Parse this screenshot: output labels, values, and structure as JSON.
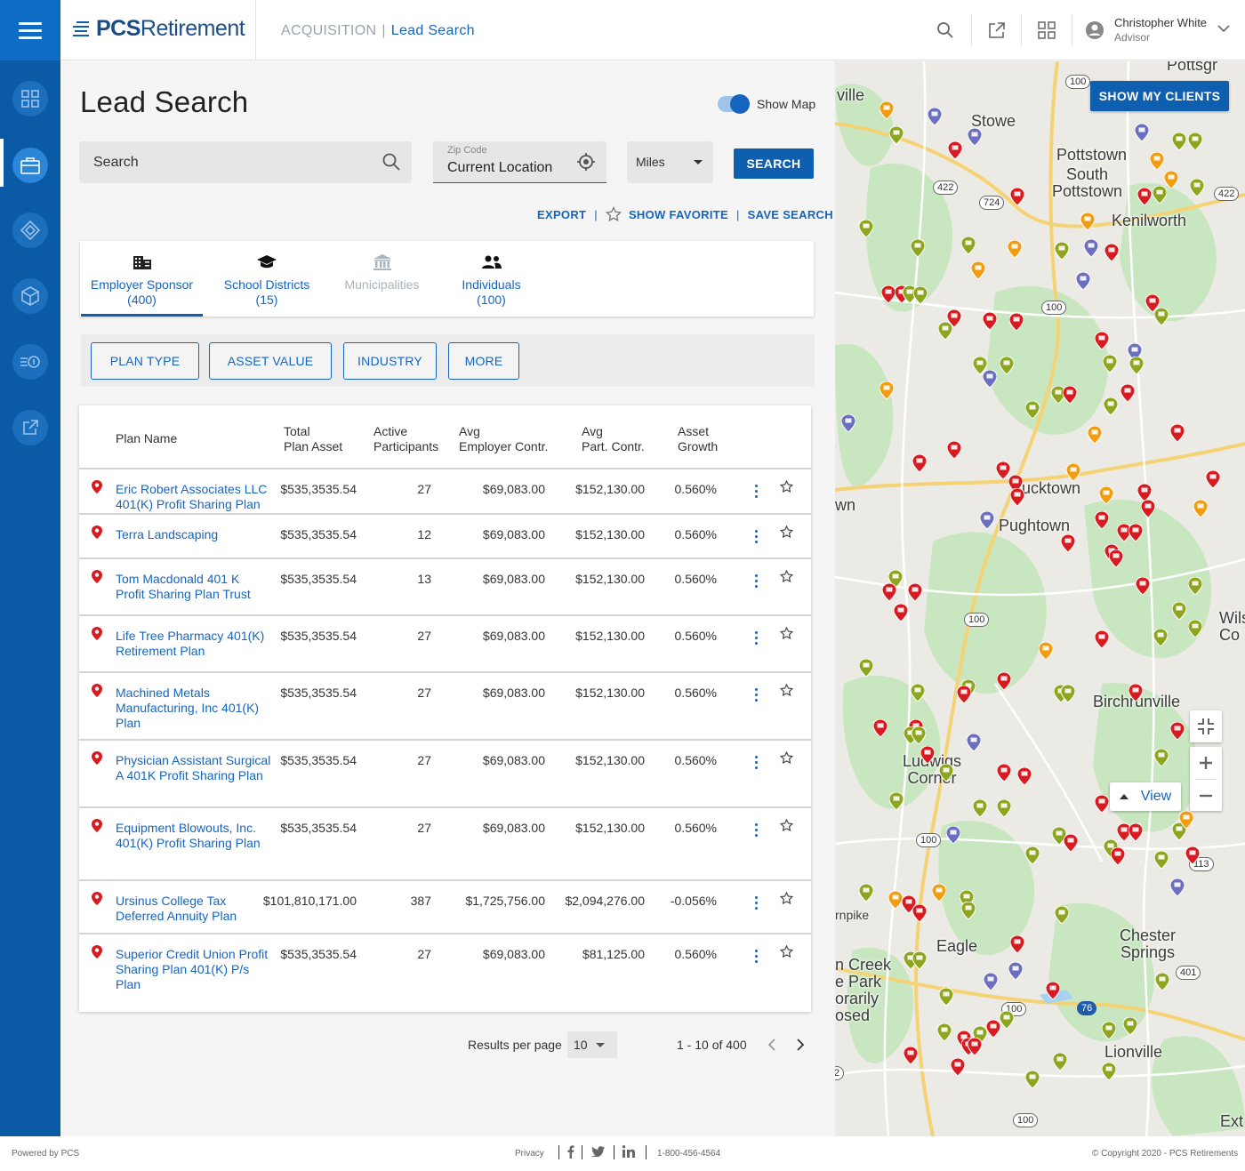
{
  "header": {
    "logo_brand": "PCS",
    "logo_suffix": "Retirement",
    "breadcrumb_section": "ACQUISITION",
    "breadcrumb_page": "Lead Search",
    "user_name": "Christopher White",
    "user_role": "Advisor"
  },
  "sidebar": {
    "items": [
      {
        "icon": "dashboard-icon"
      },
      {
        "icon": "briefcase-icon",
        "active": true
      },
      {
        "icon": "diamond-icon"
      },
      {
        "icon": "cube-icon"
      },
      {
        "icon": "money-transfer-icon"
      },
      {
        "icon": "external-link-icon"
      }
    ]
  },
  "page": {
    "title": "Lead Search",
    "show_map_label": "Show Map",
    "show_map_on": true
  },
  "search": {
    "placeholder": "Search",
    "zip_label": "Zip Code",
    "zip_value": "Current Location",
    "distance_unit": "Miles",
    "search_button": "SEARCH"
  },
  "actions": {
    "export": "EXPORT",
    "show_favorite": "SHOW FAVORITE",
    "save_search": "SAVE SEARCH"
  },
  "tabs": [
    {
      "label": "Employer Sponsor",
      "count": "(400)",
      "icon": "building-icon",
      "active": true
    },
    {
      "label": "School Districts",
      "count": "(15)",
      "icon": "graduation-cap-icon"
    },
    {
      "label": "Municipalities",
      "count": "",
      "icon": "bank-icon",
      "disabled": true
    },
    {
      "label": "Individuals",
      "count": "(100)",
      "icon": "people-icon"
    }
  ],
  "filters": [
    "PLAN TYPE",
    "ASSET VALUE",
    "INDUSTRY",
    "MORE"
  ],
  "table": {
    "columns": [
      "Plan Name",
      "Total\nPlan Asset",
      "Active\nParticipants",
      "Avg\nEmployer Contr.",
      "Avg\nPart. Contr.",
      "Asset\nGrowth"
    ],
    "rows": [
      {
        "name": "Eric Robert Associates LLC 401(K) Profit Sharing Plan",
        "asset": "$535,3535.54",
        "participants": "27",
        "employer": "$69,083.00",
        "part": "$152,130.00",
        "growth": "0.560%"
      },
      {
        "name": "Terra Landscaping",
        "asset": "$535,3535.54",
        "participants": "12",
        "employer": "$69,083.00",
        "part": "$152,130.00",
        "growth": "0.560%"
      },
      {
        "name": "Tom Macdonald 401 K Profit Sharing Plan Trust",
        "asset": "$535,3535.54",
        "participants": "13",
        "employer": "$69,083.00",
        "part": "$152,130.00",
        "growth": "0.560%"
      },
      {
        "name": "Life Tree Pharmacy 401(K) Retirement Plan",
        "asset": "$535,3535.54",
        "participants": "27",
        "employer": "$69,083.00",
        "part": "$152,130.00",
        "growth": "0.560%"
      },
      {
        "name": "Machined Metals Manufacturing, Inc 401(K) Plan",
        "asset": "$535,3535.54",
        "participants": "27",
        "employer": "$69,083.00",
        "part": "$152,130.00",
        "growth": "0.560%"
      },
      {
        "name": "Physician Assistant Surgical A 401K Profit Sharing Plan",
        "asset": "$535,3535.54",
        "participants": "27",
        "employer": "$69,083.00",
        "part": "$152,130.00",
        "growth": "0.560%"
      },
      {
        "name": "Equipment Blowouts, Inc. 401(K) Profit Sharing Plan",
        "asset": "$535,3535.54",
        "participants": "27",
        "employer": "$69,083.00",
        "part": "$152,130.00",
        "growth": "0.560%"
      },
      {
        "name": "Ursinus College Tax Deferred Annuity Plan",
        "asset": "$101,810,171.00",
        "participants": "387",
        "employer": "$1,725,756.00",
        "part": "$2,094,276.00",
        "growth": "-0.056%"
      },
      {
        "name": "Superior Credit Union Profit Sharing Plan 401(K) P/s Plan",
        "asset": "$535,3535.54",
        "participants": "27",
        "employer": "$69,083.00",
        "part": "$81,125.00",
        "growth": "0.560%"
      }
    ]
  },
  "pagination": {
    "results_per_page_label": "Results per page",
    "per_page": "10",
    "range": "1 - 10 of 400"
  },
  "map": {
    "show_clients": "SHOW MY CLIENTS",
    "view_label": "View",
    "places": [
      "Pottsgr",
      "ville",
      "Stowe",
      "Pottstown",
      "South\nPottstown",
      "Kenilworth",
      "Bucktown",
      "wn",
      "Pughtown",
      "Birchrunville",
      "Wils\nCo",
      "Ludwigs\nCorner",
      "Eagle",
      "Chester\nSprings",
      "n Creek\ne Park\norarily\nosed",
      "rnpike",
      "Lionville",
      "Ext"
    ],
    "routes": [
      "100",
      "422",
      "724",
      "422",
      "100",
      "100",
      "100",
      "113",
      "100",
      "401",
      "76",
      "100",
      "113",
      "2"
    ]
  },
  "footer": {
    "powered_by": "Powered by PCS",
    "privacy": "Privacy",
    "phone": "1-800-456-4564",
    "copyright": "© Copyright 2020 - PCS Retirements"
  },
  "colors": {
    "brand_blue": "#0e5fb0",
    "sidebar_blue": "#0b5aa6",
    "link_blue": "#1565c0",
    "marker_red": "#d81b20",
    "marker_green": "#8ea61f",
    "marker_orange": "#f29c11",
    "marker_purple": "#6c6fbf"
  }
}
